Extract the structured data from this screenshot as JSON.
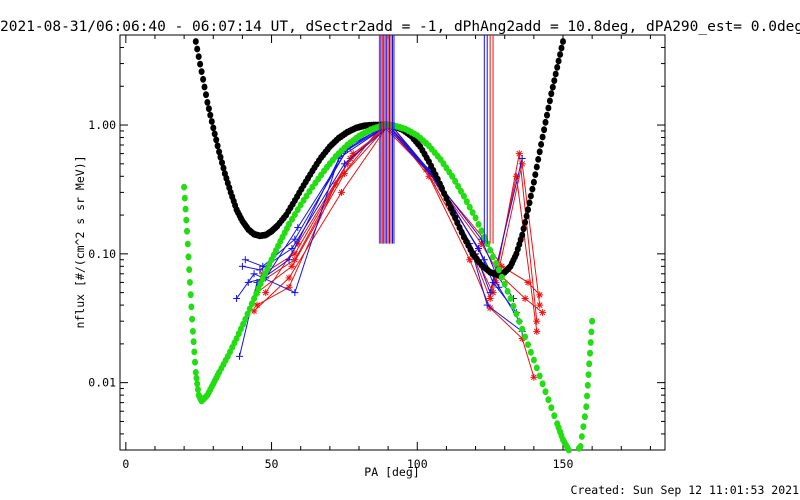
{
  "chart_data": {
    "type": "scatter",
    "title": "2021-08-31/06:06:40 - 06:07:14 UT, dSectr2add = -1, dPhAng2add = 10.8deg, dPA290_est=  0.0deg",
    "xlabel": "PA [deg]",
    "ylabel": "nflux [#/(cm^2 s sr MeV)]",
    "xlim": [
      -2,
      185
    ],
    "ylim": [
      0.003,
      5.0
    ],
    "log_y": true,
    "grid": false,
    "x_ticks": [
      0,
      50,
      100,
      150
    ],
    "x_tick_labels": [
      "0",
      "50",
      "100",
      "150"
    ],
    "y_ticks": [
      0.01,
      0.1,
      1.0
    ],
    "y_tick_labels": [
      "0.01",
      "0.10",
      "1.00"
    ],
    "footer": "Created: Sun Sep 12 11:01:53 2021",
    "colors": {
      "black": "#000000",
      "green": "#22dd11",
      "red": "#ee1111",
      "blue": "#1111ee"
    },
    "series": [
      {
        "style": "black-dots",
        "x": [
          24,
          26,
          28,
          30,
          32,
          34,
          36,
          38,
          40,
          42,
          44,
          46,
          48,
          50,
          52,
          55,
          58,
          61,
          64,
          67,
          70,
          73,
          76,
          79,
          82,
          85,
          88,
          90,
          92,
          95,
          98,
          101,
          104,
          107,
          110,
          113,
          116,
          119,
          122,
          125,
          128,
          130,
          132,
          134,
          136,
          138,
          140,
          142,
          144,
          146,
          148,
          150
        ],
        "y": [
          4.45,
          2.6,
          1.5,
          0.95,
          0.62,
          0.42,
          0.3,
          0.22,
          0.18,
          0.155,
          0.142,
          0.138,
          0.14,
          0.15,
          0.165,
          0.2,
          0.26,
          0.34,
          0.44,
          0.56,
          0.68,
          0.79,
          0.88,
          0.95,
          0.99,
          1.0,
          1.0,
          1.0,
          0.98,
          0.92,
          0.82,
          0.68,
          0.52,
          0.38,
          0.27,
          0.19,
          0.135,
          0.1,
          0.082,
          0.072,
          0.068,
          0.072,
          0.08,
          0.1,
          0.14,
          0.22,
          0.36,
          0.62,
          1.05,
          1.75,
          2.8,
          4.45
        ]
      },
      {
        "style": "green-dots",
        "x": [
          20,
          21,
          22,
          23,
          24,
          25,
          26,
          28,
          30,
          32,
          35,
          38,
          41,
          44,
          47,
          50,
          53,
          56,
          60,
          64,
          68,
          72,
          76,
          80,
          84,
          88,
          90,
          92,
          96,
          100,
          104,
          108,
          112,
          116,
          120,
          124,
          128,
          132,
          136,
          140,
          144,
          148,
          150,
          152,
          154,
          156,
          158,
          159,
          160
        ],
        "y": [
          0.33,
          0.15,
          0.06,
          0.025,
          0.012,
          0.008,
          0.0072,
          0.008,
          0.0098,
          0.012,
          0.016,
          0.022,
          0.031,
          0.045,
          0.064,
          0.09,
          0.125,
          0.17,
          0.24,
          0.33,
          0.44,
          0.57,
          0.7,
          0.82,
          0.92,
          0.99,
          1.0,
          0.99,
          0.93,
          0.83,
          0.69,
          0.54,
          0.4,
          0.28,
          0.19,
          0.12,
          0.075,
          0.045,
          0.026,
          0.015,
          0.0085,
          0.0048,
          0.0036,
          0.003,
          0.0028,
          0.0032,
          0.0065,
          0.014,
          0.03
        ]
      },
      {
        "style": "red-lines",
        "lines": [
          {
            "x": [
              44,
              56,
              74,
              90,
              104,
              118,
              125,
              136,
              140
            ],
            "y": [
              0.036,
              0.065,
              0.3,
              1.0,
              0.4,
              0.09,
              0.038,
              0.022,
              0.011
            ]
          },
          {
            "x": [
              45,
              57,
              75,
              90,
              105,
              120,
              126,
              135,
              141
            ],
            "y": [
              0.05,
              0.08,
              0.42,
              1.0,
              0.42,
              0.095,
              0.05,
              0.6,
              0.03
            ]
          },
          {
            "x": [
              46,
              58,
              76,
              89,
              106,
              121,
              127,
              136,
              142
            ],
            "y": [
              0.06,
              0.09,
              0.5,
              1.0,
              0.38,
              0.11,
              0.06,
              0.5,
              0.04
            ]
          },
          {
            "x": [
              47,
              58,
              77,
              90,
              107,
              122,
              128,
              137,
              143
            ],
            "y": [
              0.07,
              0.1,
              0.55,
              1.0,
              0.35,
              0.12,
              0.07,
              0.045,
              0.035
            ]
          },
          {
            "x": [
              48,
              59,
              78,
              91,
              108,
              123,
              129,
              138,
              142
            ],
            "y": [
              0.05,
              0.12,
              0.6,
              1.0,
              0.33,
              0.13,
              0.08,
              0.06,
              0.048
            ]
          },
          {
            "x": [
              45,
              56,
              72,
              88,
              103,
              119,
              125,
              134,
              141
            ],
            "y": [
              0.04,
              0.055,
              0.35,
              1.0,
              0.45,
              0.1,
              0.045,
              0.4,
              0.025
            ]
          }
        ]
      },
      {
        "style": "blue-lines",
        "lines": [
          {
            "x": [
              38,
              44,
              58,
              73,
              90,
              104,
              118,
              124,
              136
            ],
            "y": [
              0.045,
              0.07,
              0.05,
              0.55,
              1.0,
              0.45,
              0.12,
              0.04,
              0.025
            ]
          },
          {
            "x": [
              39,
              45,
              56,
              74,
              90,
              106,
              120,
              125,
              136
            ],
            "y": [
              0.016,
              0.06,
              0.09,
              0.6,
              1.0,
              0.4,
              0.1,
              0.05,
              0.55
            ]
          },
          {
            "x": [
              40,
              46,
              57,
              75,
              91,
              105,
              121,
              126,
              134
            ],
            "y": [
              0.08,
              0.075,
              0.11,
              0.5,
              1.0,
              0.42,
              0.11,
              0.06,
              0.035
            ]
          },
          {
            "x": [
              41,
              47,
              58,
              76,
              89,
              107,
              122,
              127,
              133
            ],
            "y": [
              0.09,
              0.08,
              0.13,
              0.65,
              1.0,
              0.36,
              0.13,
              0.07,
              0.045
            ]
          },
          {
            "x": [
              42,
              48,
              59,
              77,
              90,
              108,
              123,
              128,
              135
            ],
            "y": [
              0.06,
              0.065,
              0.16,
              0.7,
              1.0,
              0.34,
              0.09,
              0.055,
              0.03
            ]
          }
        ]
      },
      {
        "style": "vertical-markers",
        "red_x": [
          87,
          88,
          89,
          90,
          91,
          125,
          126
        ],
        "blue_x": [
          87.5,
          88.5,
          89.5,
          90.5,
          91.5,
          92,
          123,
          124
        ]
      }
    ]
  }
}
